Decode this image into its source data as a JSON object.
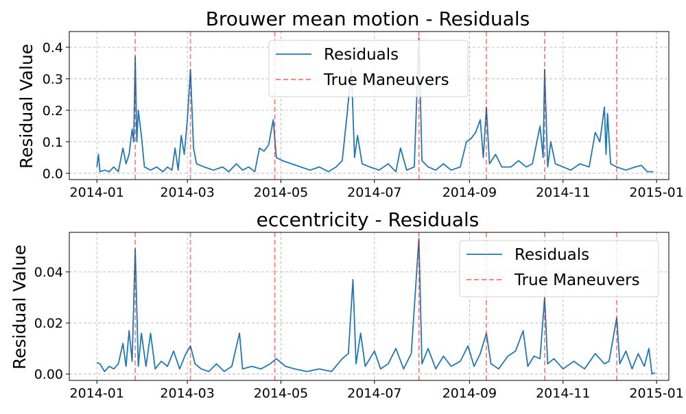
{
  "chart_data": [
    {
      "type": "line",
      "title": "Brouwer mean motion - Residuals",
      "xlabel": "",
      "ylabel": "Residual Value",
      "x_ticks": [
        "2014-01",
        "2014-03",
        "2014-05",
        "2014-07",
        "2014-09",
        "2014-11",
        "2015-01"
      ],
      "y_ticks": [
        "0.0",
        "0.1",
        "0.2",
        "0.3",
        "0.4"
      ],
      "ylim": [
        -0.02,
        0.45
      ],
      "xlim": [
        "2013-12-14",
        "2015-01-09"
      ],
      "grid": true,
      "legend_position": "top-center",
      "series": [
        {
          "name": "Residuals",
          "color": "#1f77b4",
          "points": [
            [
              "2014-01-01",
              0.02
            ],
            [
              "2014-01-02",
              0.06
            ],
            [
              "2014-01-03",
              0.005
            ],
            [
              "2014-01-06",
              0.01
            ],
            [
              "2014-01-09",
              0.005
            ],
            [
              "2014-01-12",
              0.02
            ],
            [
              "2014-01-15",
              0.005
            ],
            [
              "2014-01-18",
              0.08
            ],
            [
              "2014-01-20",
              0.03
            ],
            [
              "2014-01-22",
              0.06
            ],
            [
              "2014-01-24",
              0.14
            ],
            [
              "2014-01-25",
              0.1
            ],
            [
              "2014-01-26",
              0.37
            ],
            [
              "2014-01-27",
              0.1
            ],
            [
              "2014-01-28",
              0.2
            ],
            [
              "2014-01-30",
              0.12
            ],
            [
              "2014-02-01",
              0.02
            ],
            [
              "2014-02-05",
              0.01
            ],
            [
              "2014-02-09",
              0.02
            ],
            [
              "2014-02-13",
              0.005
            ],
            [
              "2014-02-16",
              0.02
            ],
            [
              "2014-02-19",
              0.01
            ],
            [
              "2014-02-21",
              0.08
            ],
            [
              "2014-02-23",
              0.01
            ],
            [
              "2014-02-25",
              0.12
            ],
            [
              "2014-02-27",
              0.06
            ],
            [
              "2014-03-01",
              0.17
            ],
            [
              "2014-03-03",
              0.33
            ],
            [
              "2014-03-05",
              0.08
            ],
            [
              "2014-03-07",
              0.03
            ],
            [
              "2014-03-12",
              0.02
            ],
            [
              "2014-03-18",
              0.01
            ],
            [
              "2014-03-24",
              0.02
            ],
            [
              "2014-03-28",
              0.005
            ],
            [
              "2014-04-02",
              0.03
            ],
            [
              "2014-04-06",
              0.01
            ],
            [
              "2014-04-10",
              0.02
            ],
            [
              "2014-04-14",
              0.005
            ],
            [
              "2014-04-17",
              0.08
            ],
            [
              "2014-04-20",
              0.07
            ],
            [
              "2014-04-23",
              0.09
            ],
            [
              "2014-04-26",
              0.17
            ],
            [
              "2014-04-28",
              0.05
            ],
            [
              "2014-05-02",
              0.04
            ],
            [
              "2014-05-08",
              0.03
            ],
            [
              "2014-05-14",
              0.02
            ],
            [
              "2014-05-20",
              0.01
            ],
            [
              "2014-05-26",
              0.02
            ],
            [
              "2014-06-01",
              0.005
            ],
            [
              "2014-06-06",
              0.02
            ],
            [
              "2014-06-10",
              0.04
            ],
            [
              "2014-06-13",
              0.18
            ],
            [
              "2014-06-16",
              0.33
            ],
            [
              "2014-06-18",
              0.05
            ],
            [
              "2014-06-20",
              0.12
            ],
            [
              "2014-06-23",
              0.03
            ],
            [
              "2014-06-28",
              0.02
            ],
            [
              "2014-07-04",
              0.01
            ],
            [
              "2014-07-10",
              0.03
            ],
            [
              "2014-07-15",
              0.005
            ],
            [
              "2014-07-18",
              0.08
            ],
            [
              "2014-07-22",
              0.01
            ],
            [
              "2014-07-27",
              0.02
            ],
            [
              "2014-07-30",
              0.43
            ],
            [
              "2014-08-01",
              0.04
            ],
            [
              "2014-08-05",
              0.02
            ],
            [
              "2014-08-10",
              0.01
            ],
            [
              "2014-08-15",
              0.03
            ],
            [
              "2014-08-20",
              0.01
            ],
            [
              "2014-08-26",
              0.02
            ],
            [
              "2014-08-30",
              0.1
            ],
            [
              "2014-09-02",
              0.11
            ],
            [
              "2014-09-05",
              0.13
            ],
            [
              "2014-09-08",
              0.17
            ],
            [
              "2014-09-10",
              0.05
            ],
            [
              "2014-09-12",
              0.21
            ],
            [
              "2014-09-14",
              0.03
            ],
            [
              "2014-09-18",
              0.06
            ],
            [
              "2014-09-22",
              0.02
            ],
            [
              "2014-09-28",
              0.02
            ],
            [
              "2014-10-03",
              0.04
            ],
            [
              "2014-10-08",
              0.02
            ],
            [
              "2014-10-12",
              0.03
            ],
            [
              "2014-10-17",
              0.15
            ],
            [
              "2014-10-19",
              0.05
            ],
            [
              "2014-10-20",
              0.33
            ],
            [
              "2014-10-22",
              0.02
            ],
            [
              "2014-10-24",
              0.1
            ],
            [
              "2014-10-27",
              0.03
            ],
            [
              "2014-11-01",
              0.02
            ],
            [
              "2014-11-06",
              0.01
            ],
            [
              "2014-11-12",
              0.03
            ],
            [
              "2014-11-18",
              0.02
            ],
            [
              "2014-11-22",
              0.13
            ],
            [
              "2014-11-25",
              0.1
            ],
            [
              "2014-11-28",
              0.21
            ],
            [
              "2014-11-29",
              0.06
            ],
            [
              "2014-11-30",
              0.19
            ],
            [
              "2014-12-02",
              0.03
            ],
            [
              "2014-12-06",
              0.02
            ],
            [
              "2014-12-12",
              0.01
            ],
            [
              "2014-12-18",
              0.02
            ],
            [
              "2014-12-22",
              0.025
            ],
            [
              "2014-12-26",
              0.005
            ],
            [
              "2014-12-30",
              0.005
            ]
          ]
        },
        {
          "name": "True Maneuvers",
          "color": "#ff0000",
          "style": "dashed",
          "dates": [
            "2014-01-26",
            "2014-03-03",
            "2014-04-27",
            "2014-07-30",
            "2014-09-12",
            "2014-10-20",
            "2014-12-06"
          ]
        }
      ]
    },
    {
      "type": "line",
      "title": "eccentricity - Residuals",
      "xlabel": "",
      "ylabel": "Residual Value",
      "x_ticks": [
        "2014-01",
        "2014-03",
        "2014-05",
        "2014-07",
        "2014-09",
        "2014-11",
        "2015-01"
      ],
      "y_ticks": [
        "0.00",
        "0.02",
        "0.04"
      ],
      "ylim": [
        -0.0025,
        0.0555
      ],
      "xlim": [
        "2013-12-14",
        "2015-01-09"
      ],
      "grid": true,
      "legend_position": "top-right",
      "series": [
        {
          "name": "Residuals",
          "color": "#1f77b4",
          "points": [
            [
              "2014-01-01",
              0.0045
            ],
            [
              "2014-01-03",
              0.004
            ],
            [
              "2014-01-06",
              0.001
            ],
            [
              "2014-01-09",
              0.003
            ],
            [
              "2014-01-12",
              0.002
            ],
            [
              "2014-01-15",
              0.004
            ],
            [
              "2014-01-18",
              0.012
            ],
            [
              "2014-01-20",
              0.003
            ],
            [
              "2014-01-22",
              0.017
            ],
            [
              "2014-01-24",
              0.005
            ],
            [
              "2014-01-26",
              0.049
            ],
            [
              "2014-01-28",
              0.003
            ],
            [
              "2014-01-30",
              0.016
            ],
            [
              "2014-02-02",
              0.003
            ],
            [
              "2014-02-05",
              0.016
            ],
            [
              "2014-02-08",
              0.002
            ],
            [
              "2014-02-12",
              0.005
            ],
            [
              "2014-02-16",
              0.003
            ],
            [
              "2014-02-20",
              0.009
            ],
            [
              "2014-02-24",
              0.002
            ],
            [
              "2014-02-28",
              0.008
            ],
            [
              "2014-03-03",
              0.011
            ],
            [
              "2014-03-06",
              0.004
            ],
            [
              "2014-03-10",
              0.002
            ],
            [
              "2014-03-15",
              0.001
            ],
            [
              "2014-03-20",
              0.004
            ],
            [
              "2014-03-25",
              0.001
            ],
            [
              "2014-03-30",
              0.003
            ],
            [
              "2014-04-04",
              0.016
            ],
            [
              "2014-04-06",
              0.002
            ],
            [
              "2014-04-12",
              0.003
            ],
            [
              "2014-04-18",
              0.002
            ],
            [
              "2014-04-24",
              0.004
            ],
            [
              "2014-04-28",
              0.006
            ],
            [
              "2014-05-04",
              0.003
            ],
            [
              "2014-05-10",
              0.002
            ],
            [
              "2014-05-18",
              0.001
            ],
            [
              "2014-05-26",
              0.002
            ],
            [
              "2014-06-03",
              0.001
            ],
            [
              "2014-06-10",
              0.006
            ],
            [
              "2014-06-14",
              0.008
            ],
            [
              "2014-06-17",
              0.037
            ],
            [
              "2014-06-19",
              0.004
            ],
            [
              "2014-06-22",
              0.016
            ],
            [
              "2014-06-25",
              0.003
            ],
            [
              "2014-07-01",
              0.009
            ],
            [
              "2014-07-05",
              0.002
            ],
            [
              "2014-07-10",
              0.004
            ],
            [
              "2014-07-15",
              0.01
            ],
            [
              "2014-07-20",
              0.002
            ],
            [
              "2014-07-25",
              0.008
            ],
            [
              "2014-07-30",
              0.053
            ],
            [
              "2014-08-01",
              0.004
            ],
            [
              "2014-08-05",
              0.01
            ],
            [
              "2014-08-10",
              0.002
            ],
            [
              "2014-08-15",
              0.007
            ],
            [
              "2014-08-20",
              0.003
            ],
            [
              "2014-08-26",
              0.005
            ],
            [
              "2014-08-31",
              0.011
            ],
            [
              "2014-09-04",
              0.003
            ],
            [
              "2014-09-08",
              0.008
            ],
            [
              "2014-09-12",
              0.016
            ],
            [
              "2014-09-15",
              0.004
            ],
            [
              "2014-09-20",
              0.002
            ],
            [
              "2014-09-26",
              0.007
            ],
            [
              "2014-10-01",
              0.009
            ],
            [
              "2014-10-06",
              0.017
            ],
            [
              "2014-10-09",
              0.003
            ],
            [
              "2014-10-13",
              0.007
            ],
            [
              "2014-10-17",
              0.006
            ],
            [
              "2014-10-20",
              0.03
            ],
            [
              "2014-10-22",
              0.004
            ],
            [
              "2014-10-26",
              0.006
            ],
            [
              "2014-11-01",
              0.002
            ],
            [
              "2014-11-08",
              0.005
            ],
            [
              "2014-11-15",
              0.002
            ],
            [
              "2014-11-22",
              0.008
            ],
            [
              "2014-11-28",
              0.004
            ],
            [
              "2014-12-01",
              0.005
            ],
            [
              "2014-12-06",
              0.022
            ],
            [
              "2014-12-08",
              0.004
            ],
            [
              "2014-12-12",
              0.009
            ],
            [
              "2014-12-16",
              0.002
            ],
            [
              "2014-12-20",
              0.008
            ],
            [
              "2014-12-24",
              0.003
            ],
            [
              "2014-12-27",
              0.01
            ],
            [
              "2014-12-29",
              0.0
            ],
            [
              "2014-12-31",
              0.0005
            ]
          ]
        },
        {
          "name": "True Maneuvers",
          "color": "#ff0000",
          "style": "dashed",
          "dates": [
            "2014-01-26",
            "2014-03-03",
            "2014-04-27",
            "2014-07-30",
            "2014-09-12",
            "2014-10-20",
            "2014-12-06"
          ]
        }
      ]
    }
  ]
}
